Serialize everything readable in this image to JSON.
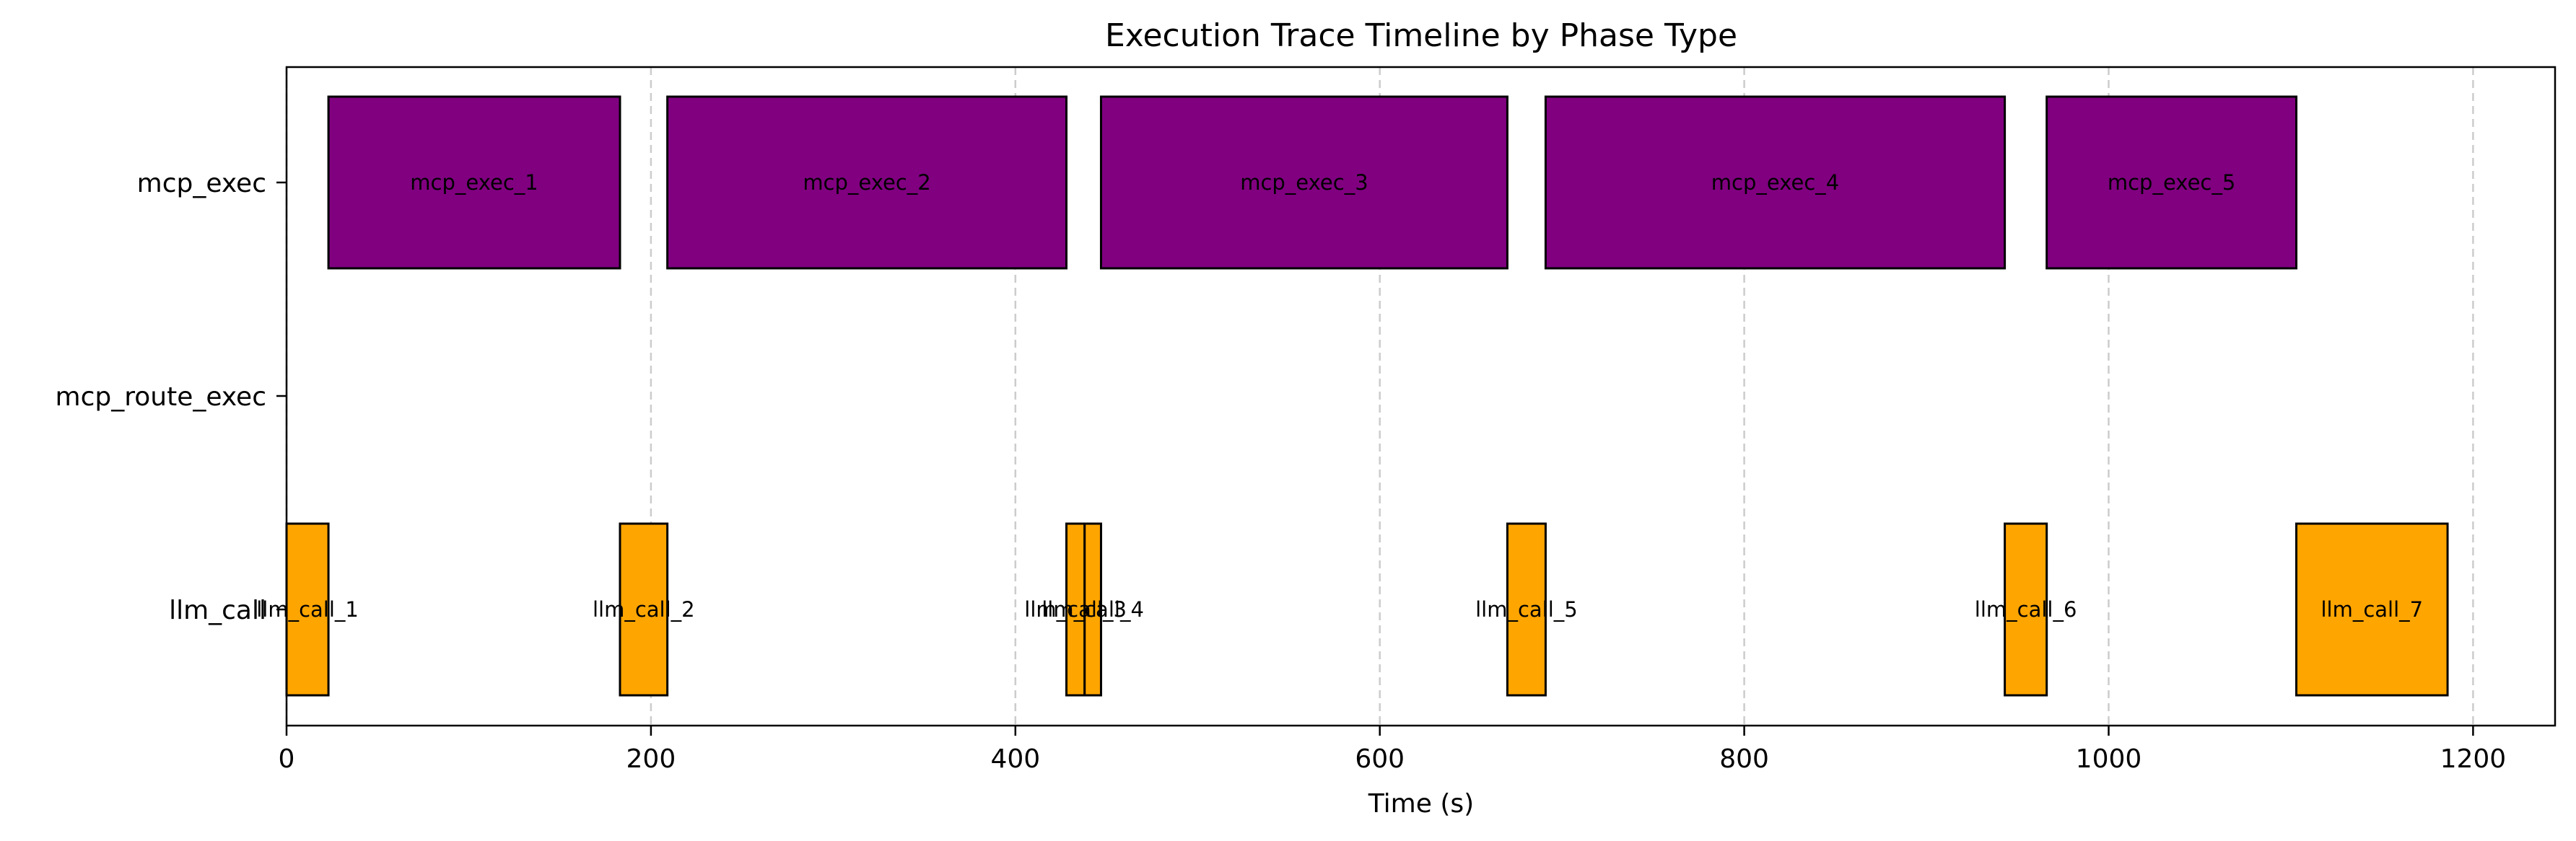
{
  "chart_data": {
    "type": "gantt",
    "title": "Execution Trace Timeline by Phase Type",
    "xlabel": "Time (s)",
    "ylabel": "",
    "xlim": [
      0,
      1245
    ],
    "xticks": [
      0,
      200,
      400,
      600,
      800,
      1000,
      1200
    ],
    "grid": "x-dashed",
    "lanes": [
      "llm_call",
      "mcp_route_exec",
      "mcp_exec"
    ],
    "colors": {
      "llm_call": "#ffa500",
      "mcp_exec": "#800080"
    },
    "segments": [
      {
        "lane": "llm_call",
        "label": "llm_call_1",
        "start": 0,
        "end": 23
      },
      {
        "lane": "mcp_exec",
        "label": "mcp_exec_1",
        "start": 23,
        "end": 183
      },
      {
        "lane": "llm_call",
        "label": "llm_call_2",
        "start": 183,
        "end": 209
      },
      {
        "lane": "mcp_exec",
        "label": "mcp_exec_2",
        "start": 209,
        "end": 428
      },
      {
        "lane": "llm_call",
        "label": "llm_call_3",
        "start": 428,
        "end": 438
      },
      {
        "lane": "llm_call",
        "label": "llm_call_4",
        "start": 438,
        "end": 447
      },
      {
        "lane": "mcp_exec",
        "label": "mcp_exec_3",
        "start": 447,
        "end": 670
      },
      {
        "lane": "llm_call",
        "label": "llm_call_5",
        "start": 670,
        "end": 691
      },
      {
        "lane": "mcp_exec",
        "label": "mcp_exec_4",
        "start": 691,
        "end": 943
      },
      {
        "lane": "llm_call",
        "label": "llm_call_6",
        "start": 943,
        "end": 966
      },
      {
        "lane": "mcp_exec",
        "label": "mcp_exec_5",
        "start": 966,
        "end": 1103
      },
      {
        "lane": "llm_call",
        "label": "llm_call_7",
        "start": 1103,
        "end": 1186
      }
    ]
  }
}
